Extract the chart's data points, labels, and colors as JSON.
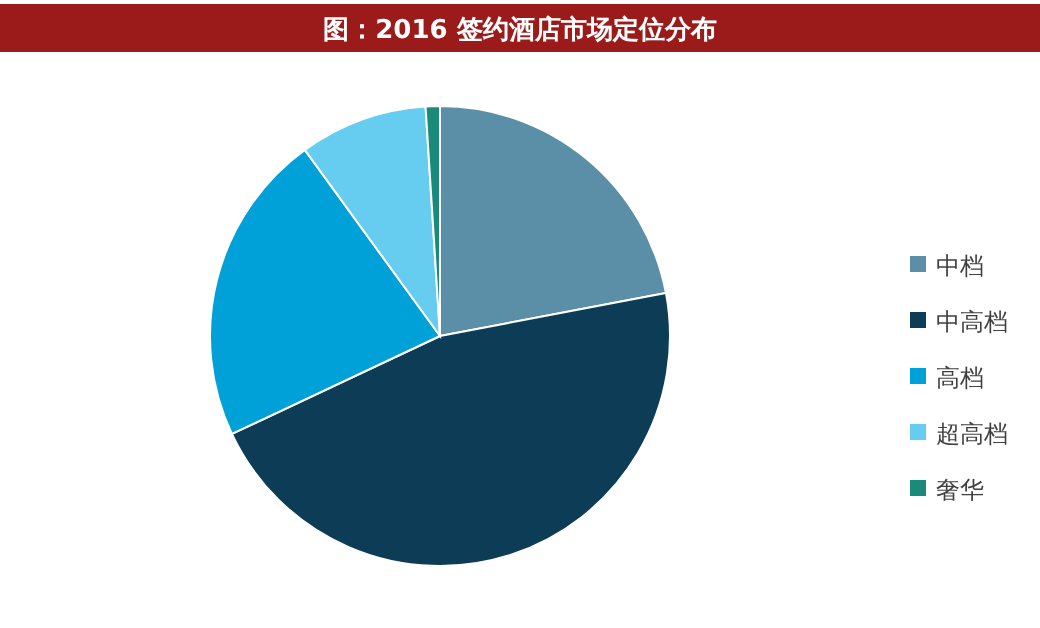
{
  "chart_data": {
    "type": "pie",
    "title": "图：2016 签约酒店市场定位分布",
    "categories": [
      "中档",
      "中高档",
      "高档",
      "超高档",
      "奢华"
    ],
    "values": [
      22,
      46,
      22,
      9,
      1
    ],
    "colors": [
      "#5b8fa8",
      "#0d3d56",
      "#00a0d8",
      "#66ccf0",
      "#1a8a7a"
    ],
    "legend": "right"
  }
}
